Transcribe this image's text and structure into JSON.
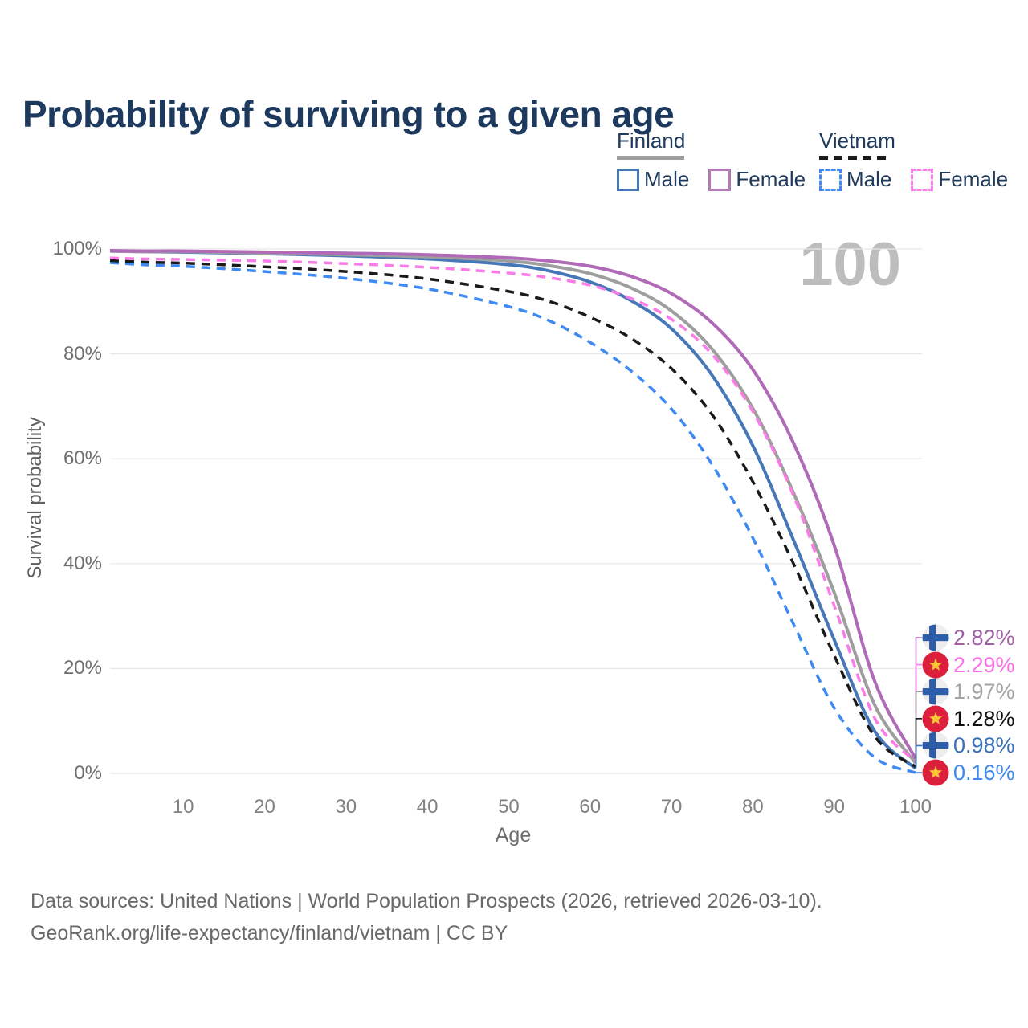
{
  "title": "Probability of surviving to a given age",
  "watermark": "100",
  "legend": {
    "groups": [
      {
        "country": "Finland",
        "line_style": "solid",
        "underline_color": "#9e9e9e",
        "items": [
          {
            "label": "Male",
            "color": "#4678b8",
            "dashed": false
          },
          {
            "label": "Female",
            "color": "#b279b6",
            "dashed": false
          }
        ]
      },
      {
        "country": "Vietnam",
        "line_style": "dashed",
        "underline_color": "#1a1a1a",
        "items": [
          {
            "label": "Male",
            "color": "#3f8af2",
            "dashed": true
          },
          {
            "label": "Female",
            "color": "#fb7ce8",
            "dashed": true
          }
        ]
      }
    ]
  },
  "chart_data": {
    "type": "line",
    "title": "Probability of surviving to a given age",
    "xlabel": "Age",
    "ylabel": "Survival probability",
    "xlim": [
      1,
      100
    ],
    "ylim": [
      0,
      100
    ],
    "xticks": [
      10,
      20,
      30,
      40,
      50,
      60,
      70,
      80,
      90,
      100
    ],
    "yticks": [
      0,
      20,
      40,
      60,
      80,
      100
    ],
    "ytick_suffix": "%",
    "grid": "horizontal",
    "legend_position": "top-right",
    "ages": [
      1,
      5,
      10,
      20,
      30,
      40,
      50,
      55,
      60,
      65,
      70,
      75,
      80,
      85,
      90,
      95,
      100
    ],
    "series": [
      {
        "name": "Finland Male",
        "country": "Finland",
        "sex": "Male",
        "color": "#4678b8",
        "dashed": false,
        "values": [
          99.6,
          99.5,
          99.4,
          99.1,
          98.7,
          98.1,
          97.0,
          95.8,
          93.7,
          90.2,
          84.8,
          75.9,
          62.5,
          44.5,
          25.5,
          8.0,
          0.98
        ]
      },
      {
        "name": "Finland Total",
        "country": "Finland",
        "sex": "Both",
        "color": "#9e9e9e",
        "dashed": false,
        "values": [
          99.6,
          99.5,
          99.5,
          99.2,
          98.9,
          98.5,
          97.7,
          96.8,
          95.3,
          92.6,
          88.2,
          80.9,
          69.6,
          53.5,
          34.5,
          13.0,
          1.97
        ]
      },
      {
        "name": "Finland Female",
        "country": "Finland",
        "sex": "Female",
        "color": "#b06ab8",
        "dashed": false,
        "values": [
          99.7,
          99.6,
          99.6,
          99.4,
          99.2,
          98.9,
          98.3,
          97.7,
          96.7,
          94.8,
          91.5,
          85.9,
          77.0,
          63.0,
          43.5,
          17.5,
          2.82
        ]
      },
      {
        "name": "Vietnam Male",
        "country": "Vietnam",
        "sex": "Male",
        "color": "#3f8af2",
        "dashed": true,
        "values": [
          97.4,
          97.0,
          96.7,
          95.7,
          94.4,
          92.4,
          89.0,
          86.3,
          82.2,
          76.8,
          69.5,
          58.9,
          44.9,
          28.5,
          12.5,
          3.0,
          0.16
        ]
      },
      {
        "name": "Vietnam Total",
        "country": "Vietnam",
        "sex": "Both",
        "color": "#1a1a1a",
        "dashed": true,
        "values": [
          97.8,
          97.5,
          97.3,
          96.6,
          95.7,
          94.3,
          91.9,
          90.0,
          87.0,
          83.0,
          77.2,
          68.4,
          55.6,
          40.0,
          22.5,
          7.0,
          1.28
        ]
      },
      {
        "name": "Vietnam Female",
        "country": "Vietnam",
        "sex": "Female",
        "color": "#fb7ce8",
        "dashed": true,
        "values": [
          98.3,
          98.1,
          98.0,
          97.7,
          97.2,
          96.5,
          95.4,
          94.5,
          93.1,
          90.6,
          86.6,
          79.9,
          69.0,
          53.0,
          32.0,
          10.5,
          2.29
        ]
      }
    ]
  },
  "end_labels": [
    {
      "value": "2.82%",
      "flag": "finland",
      "color": "#a05fa8",
      "series": "Finland Female"
    },
    {
      "value": "2.29%",
      "flag": "vietnam",
      "color": "#fb70e8",
      "series": "Vietnam Female"
    },
    {
      "value": "1.97%",
      "flag": "finland",
      "color": "#a3a3a3",
      "series": "Finland Total"
    },
    {
      "value": "1.28%",
      "flag": "vietnam",
      "color": "#111111",
      "series": "Vietnam Total"
    },
    {
      "value": "0.98%",
      "flag": "finland",
      "color": "#3a6fba",
      "series": "Finland Male"
    },
    {
      "value": "0.16%",
      "flag": "vietnam",
      "color": "#3c88f0",
      "series": "Vietnam Male"
    }
  ],
  "footer": {
    "line1": "Data sources: United Nations | World Population Prospects (2026, retrieved 2026-03-10).",
    "line2": "GeoRank.org/life-expectancy/finland/vietnam | CC BY"
  }
}
